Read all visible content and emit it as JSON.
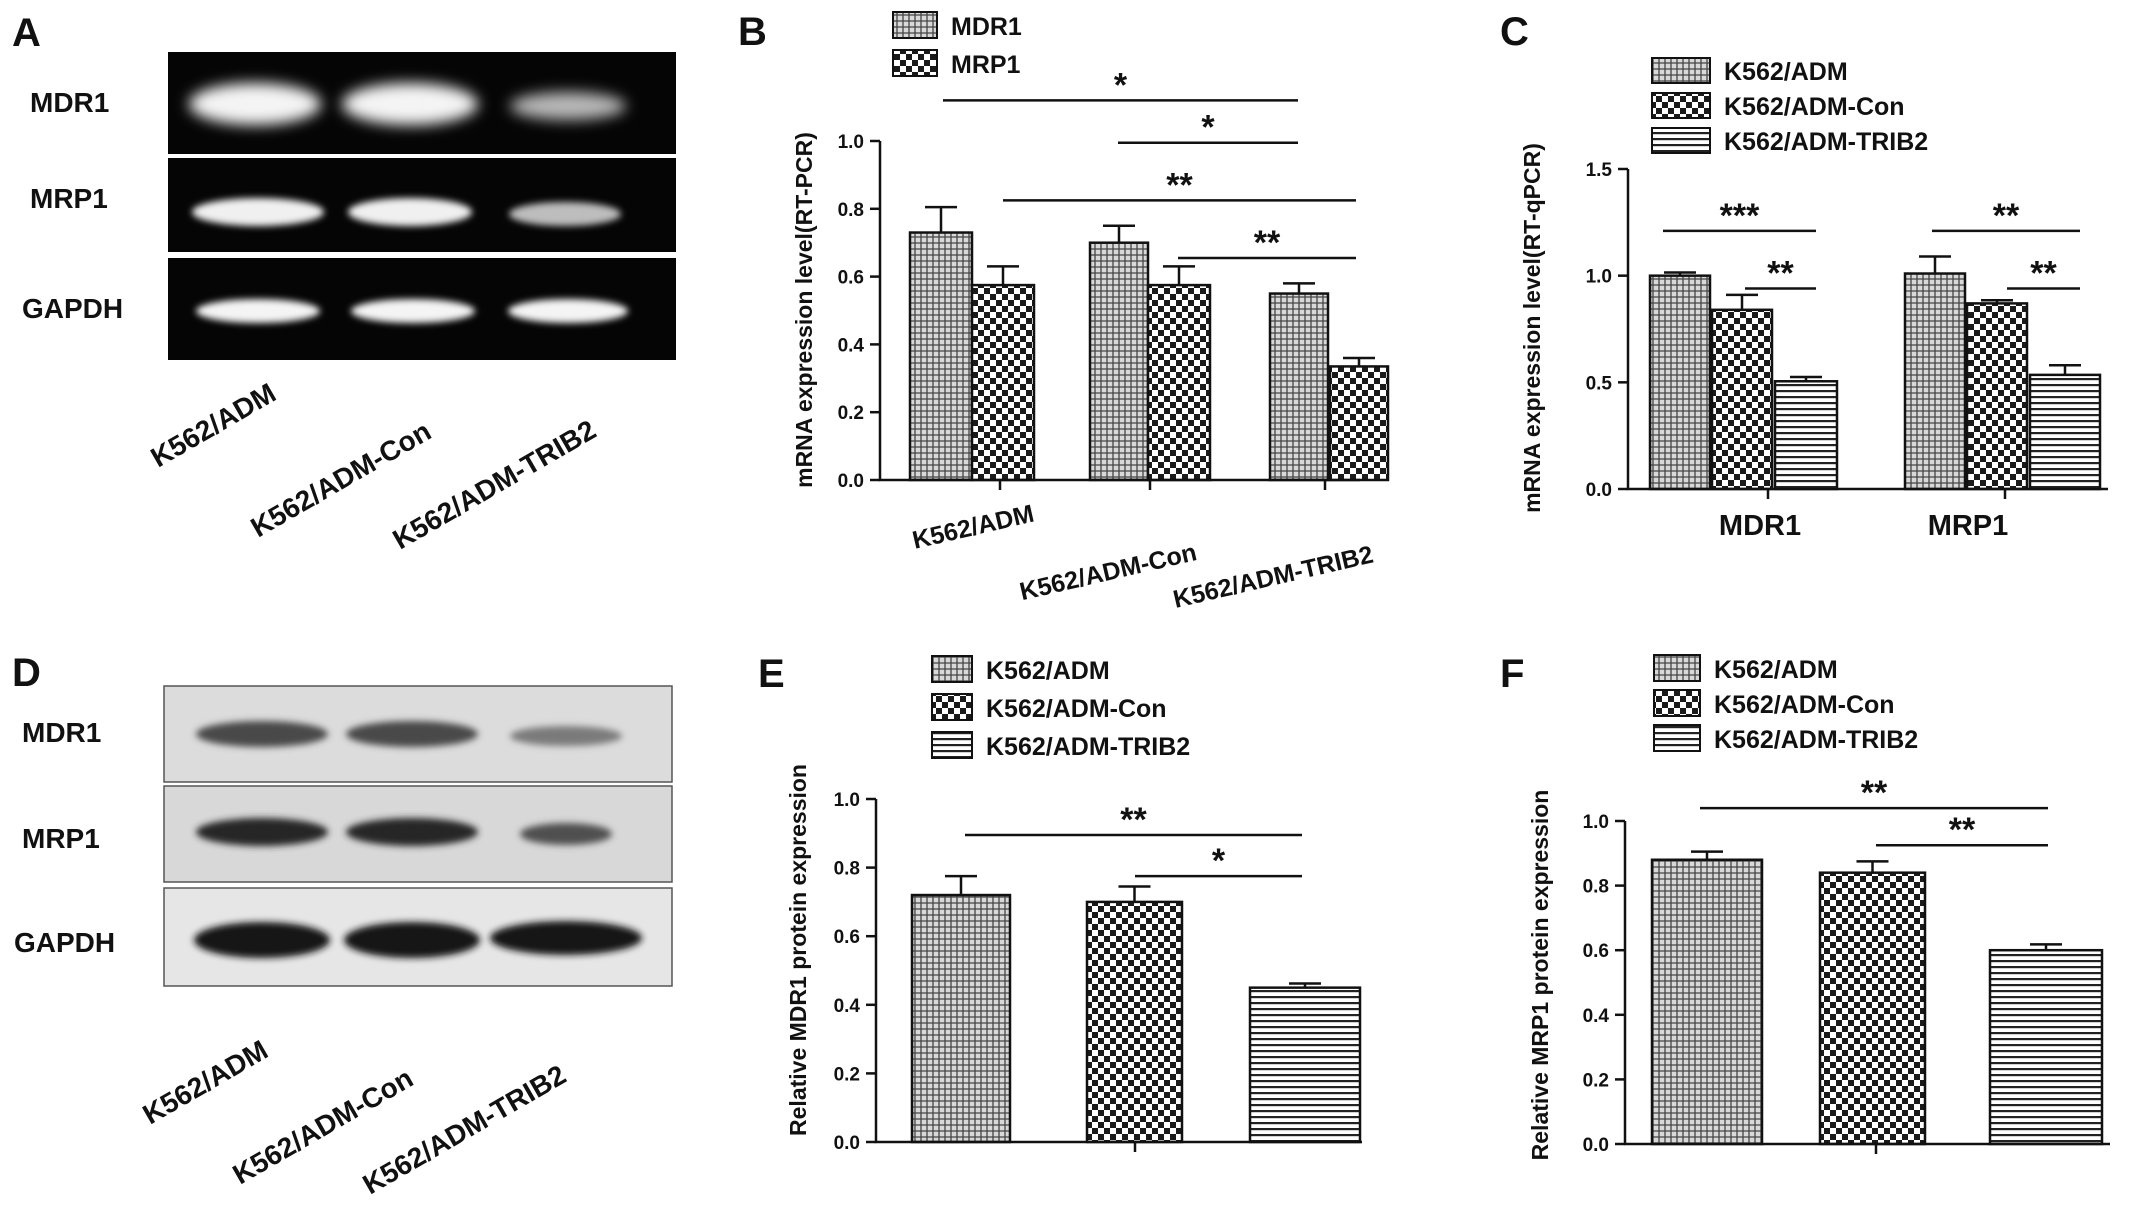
{
  "colors": {
    "ink": "#111111",
    "gel_bg": "#050505",
    "band_dna": "#f4f4f4",
    "blot_bg": "#dcdcdc",
    "band_protein": "#1a1a1a"
  },
  "panel_a": {
    "label": "A",
    "rows": [
      "MDR1",
      "MRP1",
      "GAPDH"
    ],
    "lanes": [
      "K562/ADM",
      "K562/ADM-Con",
      "K562/ADM-TRIB2"
    ]
  },
  "panel_d": {
    "label": "D",
    "rows": [
      "MDR1",
      "MRP1",
      "GAPDH"
    ],
    "lanes": [
      "K562/ADM",
      "K562/ADM-Con",
      "K562/ADM-TRIB2"
    ]
  },
  "chart_data": [
    {
      "panel": "B",
      "type": "bar",
      "ylabel": "mRNA expression level(RT-PCR)",
      "ylim": [
        0,
        1.0
      ],
      "yticks": [
        "0.0",
        "0.2",
        "0.4",
        "0.6",
        "0.8",
        "1.0"
      ],
      "categories": [
        "K562/ADM",
        "K562/ADM-Con",
        "K562/ADM-TRIB2"
      ],
      "series": [
        {
          "name": "MDR1",
          "pattern": "grid",
          "values": [
            0.73,
            0.7,
            0.55
          ],
          "errors": [
            0.075,
            0.05,
            0.03
          ]
        },
        {
          "name": "MRP1",
          "pattern": "check",
          "values": [
            0.575,
            0.575,
            0.335
          ],
          "errors": [
            0.055,
            0.055,
            0.025
          ]
        }
      ],
      "significance": [
        {
          "label": "*",
          "y": 1.12
        },
        {
          "label": "*",
          "y": 0.995
        },
        {
          "label": "**",
          "y": 0.825
        },
        {
          "label": "**",
          "y": 0.655
        }
      ]
    },
    {
      "panel": "C",
      "type": "bar",
      "ylabel": "mRNA expression level(RT-qPCR)",
      "ylim": [
        0,
        1.5
      ],
      "yticks": [
        "0.0",
        "0.5",
        "1.0",
        "1.5"
      ],
      "categories": [
        "MDR1",
        "MRP1"
      ],
      "series": [
        {
          "name": "K562/ADM",
          "pattern": "grid",
          "values": [
            1.0,
            1.01
          ],
          "errors": [
            0.015,
            0.08
          ]
        },
        {
          "name": "K562/ADM-Con",
          "pattern": "check",
          "values": [
            0.84,
            0.87
          ],
          "errors": [
            0.07,
            0.015
          ]
        },
        {
          "name": "K562/ADM-TRIB2",
          "pattern": "hstripe",
          "values": [
            0.505,
            0.535
          ],
          "errors": [
            0.02,
            0.045
          ]
        }
      ],
      "significance": [
        {
          "label": "***",
          "y": 1.21
        },
        {
          "label": "**",
          "y": 0.94
        },
        {
          "label": "**",
          "y": 1.21
        },
        {
          "label": "**",
          "y": 0.94
        }
      ]
    },
    {
      "panel": "E",
      "type": "bar",
      "ylabel": "Relative MDR1 protein expression",
      "ylim": [
        0,
        1.0
      ],
      "yticks": [
        "0.0",
        "0.2",
        "0.4",
        "0.6",
        "0.8",
        "1.0"
      ],
      "categories": [
        "K562/ADM",
        "K562/ADM-Con",
        "K562/ADM-TRIB2"
      ],
      "series": [
        {
          "name": "K562/ADM",
          "pattern": "grid",
          "values": [
            0.72,
            null,
            null
          ],
          "errors": [
            0.055,
            null,
            null
          ]
        },
        {
          "name": "K562/ADM-Con",
          "pattern": "check",
          "values": [
            null,
            0.7,
            null
          ],
          "errors": [
            null,
            0.045,
            null
          ]
        },
        {
          "name": "K562/ADM-TRIB2",
          "pattern": "hstripe",
          "values": [
            null,
            null,
            0.45
          ],
          "errors": [
            null,
            null,
            0.012
          ]
        }
      ],
      "significance": [
        {
          "label": "**",
          "y": 0.895
        },
        {
          "label": "*",
          "y": 0.775
        }
      ]
    },
    {
      "panel": "F",
      "type": "bar",
      "ylabel": "Relative MRP1 protein expression",
      "ylim": [
        0,
        1.0
      ],
      "yticks": [
        "0.0",
        "0.2",
        "0.4",
        "0.6",
        "0.8",
        "1.0"
      ],
      "categories": [
        "K562/ADM",
        "K562/ADM-Con",
        "K562/ADM-TRIB2"
      ],
      "series": [
        {
          "name": "K562/ADM",
          "pattern": "grid",
          "values": [
            0.88,
            null,
            null
          ],
          "errors": [
            0.025,
            null,
            null
          ]
        },
        {
          "name": "K562/ADM-Con",
          "pattern": "check",
          "values": [
            null,
            0.84,
            null
          ],
          "errors": [
            null,
            0.035,
            null
          ]
        },
        {
          "name": "K562/ADM-TRIB2",
          "pattern": "hstripe",
          "values": [
            null,
            null,
            0.6
          ],
          "errors": [
            null,
            null,
            0.018
          ]
        }
      ],
      "significance": [
        {
          "label": "**",
          "y": 1.04
        },
        {
          "label": "**",
          "y": 0.925
        }
      ]
    }
  ]
}
